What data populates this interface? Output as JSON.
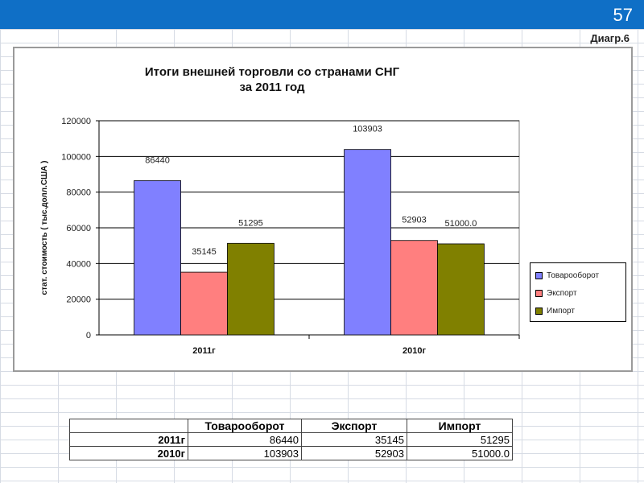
{
  "page_number": "57",
  "diagram_label": "Диагр.6",
  "colors": {
    "topbar": "#0f6fc6",
    "series": [
      "#8080ff",
      "#ff7f7f",
      "#808000"
    ]
  },
  "chart_data": {
    "type": "bar",
    "title": "Итоги внешней торговли со странами СНГ",
    "subtitle": "за 2011 год",
    "ylabel": "стат. стоимость ( тыс.долл.США )",
    "xlabel": "",
    "ylim": [
      0,
      120000
    ],
    "yticks": [
      "0",
      "20000",
      "40000",
      "60000",
      "80000",
      "100000",
      "120000"
    ],
    "categories": [
      "2011г",
      "2010г"
    ],
    "series": [
      {
        "name": "Товарооборот",
        "values": [
          86440,
          103903
        ],
        "labels": [
          "86440",
          "103903"
        ]
      },
      {
        "name": "Экспорт",
        "values": [
          35145,
          52903
        ],
        "labels": [
          "35145",
          "52903"
        ]
      },
      {
        "name": "Импорт",
        "values": [
          51295,
          51000
        ],
        "labels": [
          "51295",
          "51000.0"
        ]
      }
    ],
    "legend_position": "right",
    "grid": true
  },
  "table": {
    "headers": [
      "",
      "Товарооборот",
      "Экспорт",
      "Импорт"
    ],
    "rows": [
      [
        "2011г",
        "86440",
        "35145",
        "51295"
      ],
      [
        "2010г",
        "103903",
        "52903",
        "51000.0"
      ]
    ]
  }
}
